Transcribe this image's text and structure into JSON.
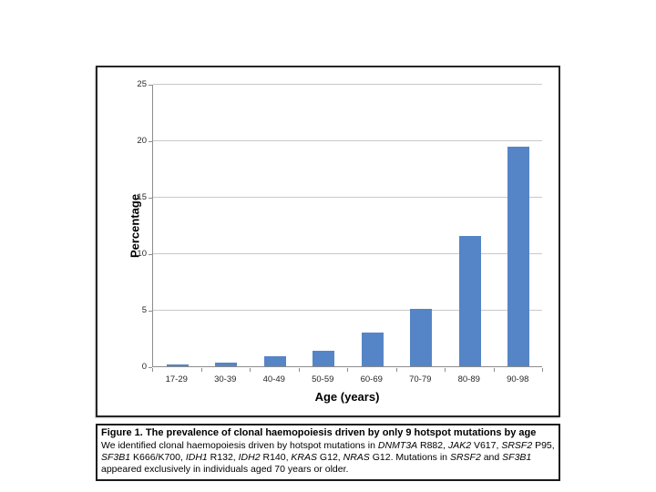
{
  "chart_data": {
    "type": "bar",
    "title": "",
    "categories": [
      "17-29",
      "30-39",
      "40-49",
      "50-59",
      "60-69",
      "70-79",
      "80-89",
      "90-98"
    ],
    "values": [
      0.2,
      0.3,
      0.9,
      1.4,
      3.0,
      5.1,
      11.5,
      19.4
    ],
    "xlabel": "Age (years)",
    "ylabel": "Percentage",
    "ylim": [
      0,
      25
    ],
    "yticks": [
      0,
      5,
      10,
      15,
      20,
      25
    ],
    "grid": true,
    "legend": "none",
    "bar_color": "#5585c6",
    "gridline_color": "#c9c9c9",
    "axis_color": "#8c8c8c"
  },
  "caption": {
    "title": "Figure 1. The prevalence of clonal haemopoiesis driven by only 9 hotspot mutations by age",
    "body_segments": [
      {
        "text": "We identified clonal haemopoiesis driven by hotspot mutations in ",
        "italic": false
      },
      {
        "text": "DNMT3A",
        "italic": true
      },
      {
        "text": " R882, ",
        "italic": false
      },
      {
        "text": "JAK2",
        "italic": true
      },
      {
        "text": " V617, ",
        "italic": false
      },
      {
        "text": "SRSF2",
        "italic": true
      },
      {
        "text": " P95, ",
        "italic": false
      },
      {
        "text": "SF3B1",
        "italic": true
      },
      {
        "text": " K666/K700, ",
        "italic": false
      },
      {
        "text": "IDH1",
        "italic": true
      },
      {
        "text": " R132, ",
        "italic": false
      },
      {
        "text": "IDH2",
        "italic": true
      },
      {
        "text": " R140, ",
        "italic": false
      },
      {
        "text": "KRAS",
        "italic": true
      },
      {
        "text": " G12, ",
        "italic": false
      },
      {
        "text": "NRAS",
        "italic": true
      },
      {
        "text": " G12. Mutations in ",
        "italic": false
      },
      {
        "text": "SRSF2",
        "italic": true
      },
      {
        "text": " and ",
        "italic": false
      },
      {
        "text": "SF3B1",
        "italic": true
      },
      {
        "text": " appeared exclusively in individuals aged 70 years or older.",
        "italic": false
      }
    ]
  }
}
